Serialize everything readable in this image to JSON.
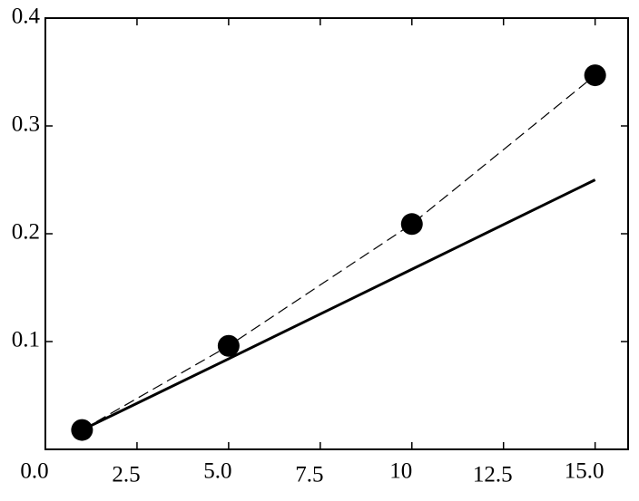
{
  "chart_data": {
    "type": "line",
    "x": [
      1,
      5,
      10,
      15
    ],
    "series": [
      {
        "color": "#000000",
        "style": "markers",
        "values": [
          0.018,
          0.096,
          0.209,
          0.347
        ]
      },
      {
        "color": "#000000",
        "style": "dashed",
        "values": [
          0.018,
          0.096,
          0.209,
          0.347
        ]
      },
      {
        "color": "#000000",
        "style": "solid",
        "values": [
          0.018,
          0.084,
          0.167,
          0.25
        ]
      }
    ],
    "xlim": [
      0,
      15.9
    ],
    "xticks": [
      {
        "value": 0,
        "label": "0.0"
      },
      2.5,
      {
        "value": 5,
        "label": "5.0"
      },
      7.5,
      10.0,
      12.5,
      {
        "value": 15,
        "label": "15.0"
      }
    ],
    "ylim": [
      0,
      0.4
    ],
    "yticks": [
      0.1,
      0.2,
      0.3,
      0.4
    ]
  }
}
